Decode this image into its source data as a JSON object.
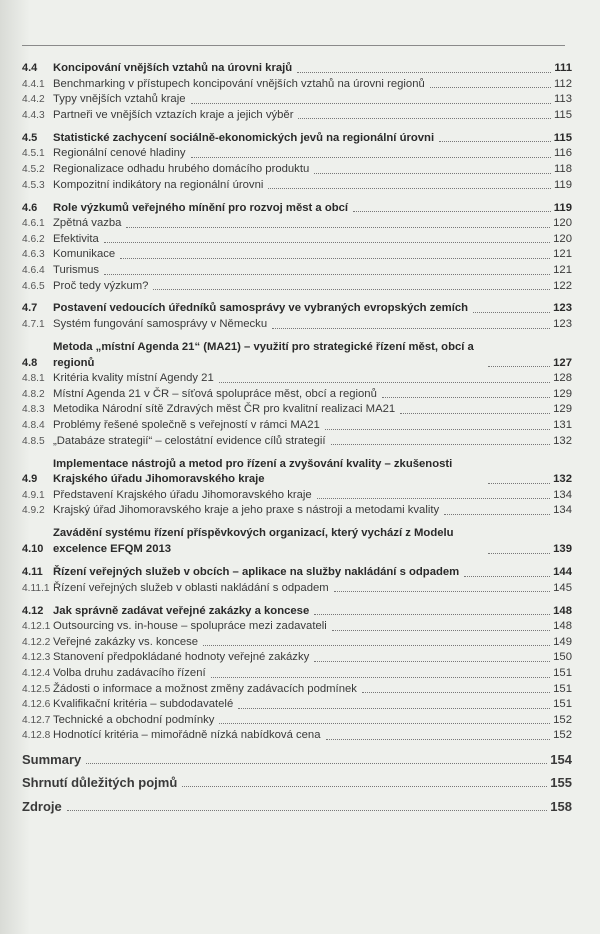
{
  "toc": [
    {
      "num": "4.4",
      "title": "Koncipování vnějších vztahů na úrovni krajů",
      "page": "111",
      "items": [
        {
          "num": "4.4.1",
          "title": "Benchmarking v přístupech koncipování vnějších vztahů na úrovni regionů",
          "page": "112"
        },
        {
          "num": "4.4.2",
          "title": "Typy vnějších vztahů kraje",
          "page": "113"
        },
        {
          "num": "4.4.3",
          "title": "Partneři ve vnějších vztazích kraje a jejich výběr",
          "page": "115"
        }
      ]
    },
    {
      "num": "4.5",
      "title": "Statistické zachycení sociálně-ekonomických jevů na regionální úrovni",
      "page": "115",
      "items": [
        {
          "num": "4.5.1",
          "title": "Regionální cenové hladiny",
          "page": "116"
        },
        {
          "num": "4.5.2",
          "title": "Regionalizace odhadu hrubého domácího produktu",
          "page": "118"
        },
        {
          "num": "4.5.3",
          "title": "Kompozitní indikátory na regionální úrovni",
          "page": "119"
        }
      ]
    },
    {
      "num": "4.6",
      "title": "Role výzkumů veřejného mínění pro rozvoj měst a obcí",
      "page": "119",
      "items": [
        {
          "num": "4.6.1",
          "title": "Zpětná vazba",
          "page": "120"
        },
        {
          "num": "4.6.2",
          "title": "Efektivita",
          "page": "120"
        },
        {
          "num": "4.6.3",
          "title": "Komunikace",
          "page": "121"
        },
        {
          "num": "4.6.4",
          "title": "Turismus",
          "page": "121"
        },
        {
          "num": "4.6.5",
          "title": "Proč tedy výzkum?",
          "page": "122"
        }
      ]
    },
    {
      "num": "4.7",
      "title": "Postavení vedoucích úředníků samosprávy ve vybraných evropských zemích",
      "page": "123",
      "items": [
        {
          "num": "4.7.1",
          "title": "Systém fungování samosprávy v Německu",
          "page": "123"
        }
      ]
    },
    {
      "num": "4.8",
      "title": "Metoda „místní Agenda 21“ (MA21) – využití pro strategické řízení měst, obcí a regionů",
      "page": "127",
      "items": [
        {
          "num": "4.8.1",
          "title": "Kritéria kvality místní Agendy 21",
          "page": "128"
        },
        {
          "num": "4.8.2",
          "title": "Místní Agenda 21 v ČR – síťová spolupráce měst, obcí a regionů",
          "page": "129"
        },
        {
          "num": "4.8.3",
          "title": "Metodika Národní sítě Zdravých měst ČR pro kvalitní realizaci MA21",
          "page": "129"
        },
        {
          "num": "4.8.4",
          "title": "Problémy řešené společně s veřejností v rámci MA21",
          "page": "131"
        },
        {
          "num": "4.8.5",
          "title": "„Databáze strategií“ – celostátní evidence cílů strategií",
          "page": "132"
        }
      ]
    },
    {
      "num": "4.9",
      "title": "Implementace nástrojů a metod pro řízení a zvyšování kvality – zkušenosti Krajského úřadu Jihomoravského kraje",
      "page": "132",
      "items": [
        {
          "num": "4.9.1",
          "title": "Představení Krajského úřadu Jihomoravského kraje",
          "page": "134"
        },
        {
          "num": "4.9.2",
          "title": "Krajský úřad Jihomoravského kraje a jeho praxe s nástroji a metodami kvality",
          "page": "134"
        }
      ]
    },
    {
      "num": "4.10",
      "title": "Zavádění systému řízení příspěvkových organizací, který vychází z Modelu excelence EFQM 2013",
      "page": "139",
      "items": []
    },
    {
      "num": "4.11",
      "title": "Řízení veřejných služeb v obcích – aplikace na služby nakládání s odpadem",
      "page": "144",
      "items": [
        {
          "num": "4.11.1",
          "title": "Řízení veřejných služeb v oblasti nakládání s odpadem",
          "page": "145"
        }
      ]
    },
    {
      "num": "4.12",
      "title": "Jak správně zadávat veřejné zakázky a koncese",
      "page": "148",
      "items": [
        {
          "num": "4.12.1",
          "title": "Outsourcing vs. in-house – spolupráce mezi zadavateli",
          "page": "148"
        },
        {
          "num": "4.12.2",
          "title": "Veřejné zakázky vs. koncese",
          "page": "149"
        },
        {
          "num": "4.12.3",
          "title": "Stanovení předpokládané hodnoty veřejné zakázky",
          "page": "150"
        },
        {
          "num": "4.12.4",
          "title": "Volba druhu zadávacího řízení",
          "page": "151"
        },
        {
          "num": "4.12.5",
          "title": "Žádosti o informace a možnost změny zadávacích podmínek",
          "page": "151"
        },
        {
          "num": "4.12.6",
          "title": "Kvalifikační kritéria – subdodavatelé",
          "page": "151"
        },
        {
          "num": "4.12.7",
          "title": "Technické a obchodní podmínky",
          "page": "152"
        },
        {
          "num": "4.12.8",
          "title": "Hodnotící kritéria – mimořádně nízká nabídková cena",
          "page": "152"
        }
      ]
    }
  ],
  "back_matter": [
    {
      "title": "Summary",
      "page": "154"
    },
    {
      "title": "Shrnutí důležitých pojmů",
      "page": "155"
    },
    {
      "title": "Zdroje",
      "page": "158"
    }
  ]
}
